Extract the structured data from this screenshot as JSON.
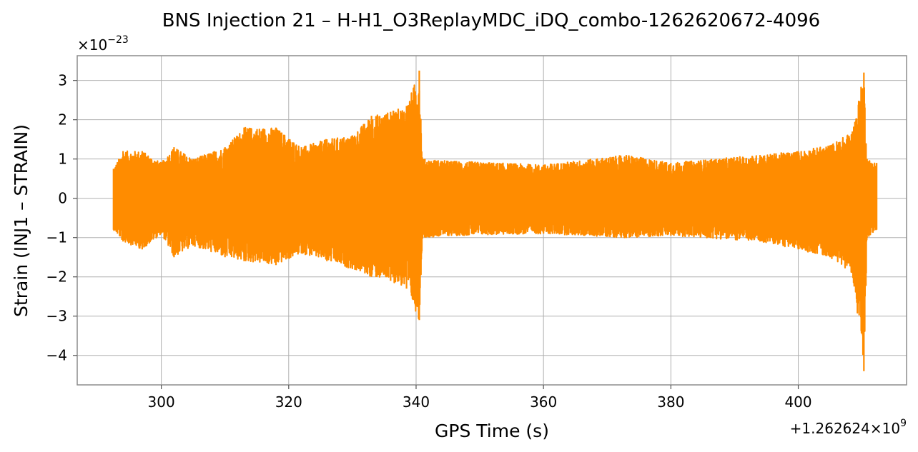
{
  "chart_data": {
    "type": "line",
    "title": "BNS Injection 21 – H-H1_O3ReplayMDC_iDQ_combo-1262620672-4096",
    "xlabel": "GPS Time (s)",
    "ylabel": "Strain (INJ1 – STRAIN)",
    "y_scale_label": "×10",
    "y_scale_exponent": "−23",
    "x_offset_label": "+1.262624×10",
    "x_offset_exponent": "9",
    "x_ticks": [
      300,
      320,
      340,
      360,
      380,
      400
    ],
    "x_tick_labels": [
      "300",
      "320",
      "340",
      "360",
      "380",
      "400"
    ],
    "y_ticks": [
      3,
      2,
      1,
      0,
      -1,
      -2,
      -3,
      -4
    ],
    "y_tick_labels": [
      "3",
      "2",
      "1",
      "0",
      "−1",
      "−2",
      "−3",
      "−4"
    ],
    "xlim": [
      286.8,
      417.0
    ],
    "ylim": [
      -4.75,
      3.63
    ],
    "grid": true,
    "color": "#ff8c00",
    "series": [
      {
        "x_range": [
          292.5,
          412.3
        ],
        "envelope": [
          {
            "t": 292.5,
            "max": 0.75,
            "min": -0.8
          },
          {
            "t": 294.0,
            "max": 1.2,
            "min": -1.1
          },
          {
            "t": 297.0,
            "max": 1.2,
            "min": -1.3
          },
          {
            "t": 300.0,
            "max": 0.9,
            "min": -0.9
          },
          {
            "t": 302.0,
            "max": 1.3,
            "min": -1.5
          },
          {
            "t": 305.0,
            "max": 1.0,
            "min": -1.2
          },
          {
            "t": 310.0,
            "max": 1.3,
            "min": -1.5
          },
          {
            "t": 313.0,
            "max": 1.8,
            "min": -1.6
          },
          {
            "t": 318.0,
            "max": 1.8,
            "min": -1.7
          },
          {
            "t": 322.0,
            "max": 1.3,
            "min": -1.4
          },
          {
            "t": 326.0,
            "max": 1.5,
            "min": -1.6
          },
          {
            "t": 330.0,
            "max": 1.6,
            "min": -1.8
          },
          {
            "t": 333.0,
            "max": 2.1,
            "min": -2.0
          },
          {
            "t": 336.0,
            "max": 2.2,
            "min": -2.1
          },
          {
            "t": 338.5,
            "max": 2.35,
            "min": -2.3
          },
          {
            "t": 340.5,
            "max": 3.25,
            "min": -3.1
          },
          {
            "t": 341.0,
            "max": 1.0,
            "min": -1.0
          },
          {
            "t": 345.0,
            "max": 0.95,
            "min": -0.95
          },
          {
            "t": 360.0,
            "max": 0.85,
            "min": -0.9
          },
          {
            "t": 373.0,
            "max": 1.1,
            "min": -1.0
          },
          {
            "t": 380.0,
            "max": 0.9,
            "min": -0.95
          },
          {
            "t": 394.0,
            "max": 1.1,
            "min": -1.1
          },
          {
            "t": 400.0,
            "max": 1.2,
            "min": -1.3
          },
          {
            "t": 405.0,
            "max": 1.35,
            "min": -1.5
          },
          {
            "t": 408.5,
            "max": 1.7,
            "min": -1.9
          },
          {
            "t": 410.3,
            "max": 3.2,
            "min": -4.4
          },
          {
            "t": 410.8,
            "max": 1.0,
            "min": -1.0
          },
          {
            "t": 412.3,
            "max": 0.9,
            "min": -0.8
          }
        ]
      }
    ]
  }
}
